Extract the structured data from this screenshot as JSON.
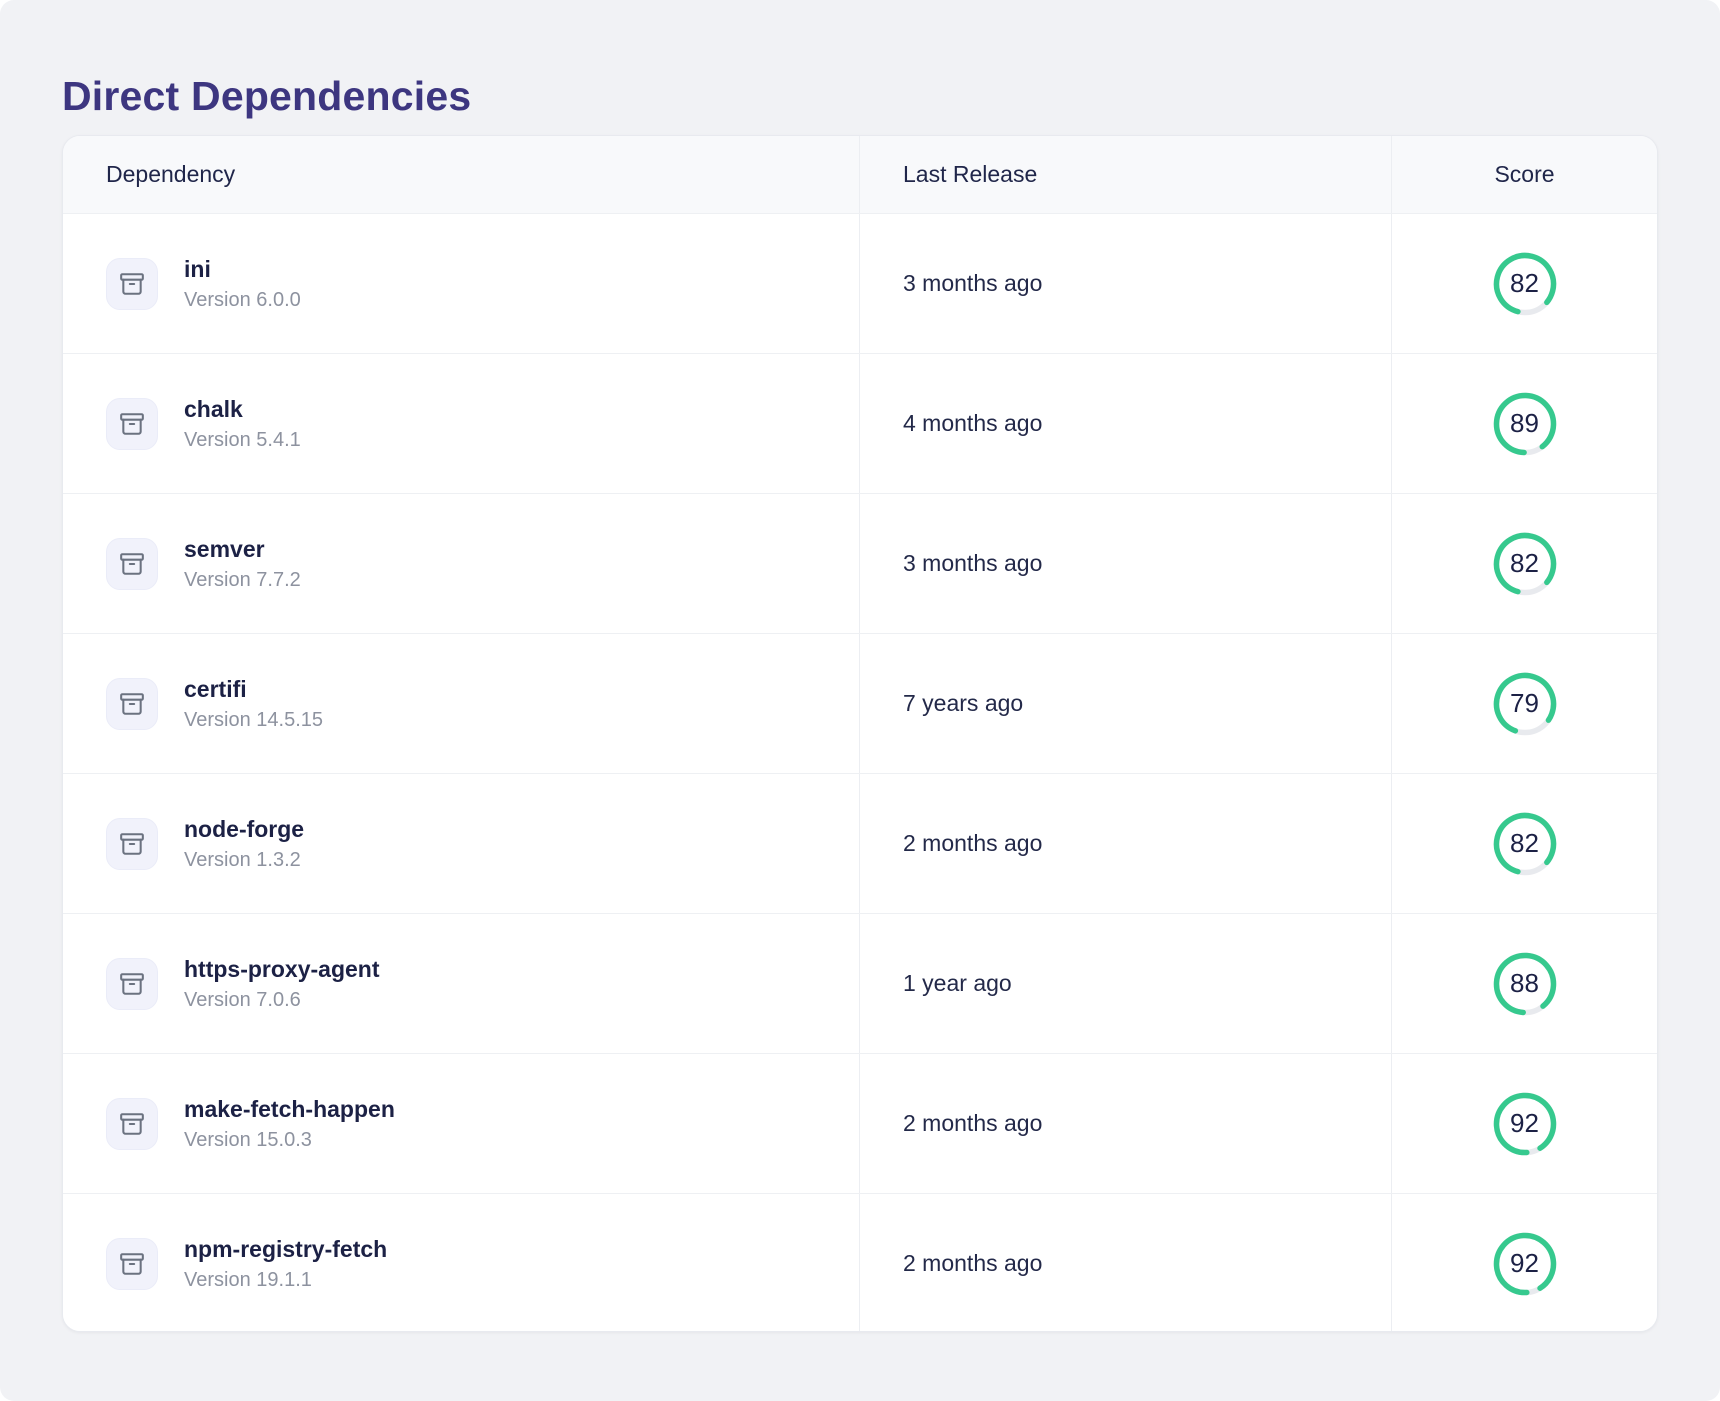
{
  "page": {
    "title": "Direct Dependencies"
  },
  "table": {
    "columns": [
      {
        "label": "Dependency"
      },
      {
        "label": "Last Release"
      },
      {
        "label": "Score"
      }
    ],
    "row_icon": "archive-box-icon",
    "rows": [
      {
        "name": "ini",
        "version_label": "Version 6.0.0",
        "last_release": "3 months ago",
        "score": 82
      },
      {
        "name": "chalk",
        "version_label": "Version 5.4.1",
        "last_release": "4 months ago",
        "score": 89
      },
      {
        "name": "semver",
        "version_label": "Version 7.7.2",
        "last_release": "3 months ago",
        "score": 82
      },
      {
        "name": "certifi",
        "version_label": "Version 14.5.15",
        "last_release": "7 years ago",
        "score": 79
      },
      {
        "name": "node-forge",
        "version_label": "Version 1.3.2",
        "last_release": "2 months ago",
        "score": 82
      },
      {
        "name": "https-proxy-agent",
        "version_label": "Version 7.0.6",
        "last_release": "1 year ago",
        "score": 88
      },
      {
        "name": "make-fetch-happen",
        "version_label": "Version 15.0.3",
        "last_release": "2 months ago",
        "score": 92
      },
      {
        "name": "npm-registry-fetch",
        "version_label": "Version 19.1.1",
        "last_release": "2 months ago",
        "score": 92
      }
    ]
  },
  "colors": {
    "accent_green": "#36c98e",
    "gauge_track": "#e8eaee",
    "title_text": "#3d3680",
    "primary_text": "#1c2145",
    "muted_text": "#8d929f"
  }
}
